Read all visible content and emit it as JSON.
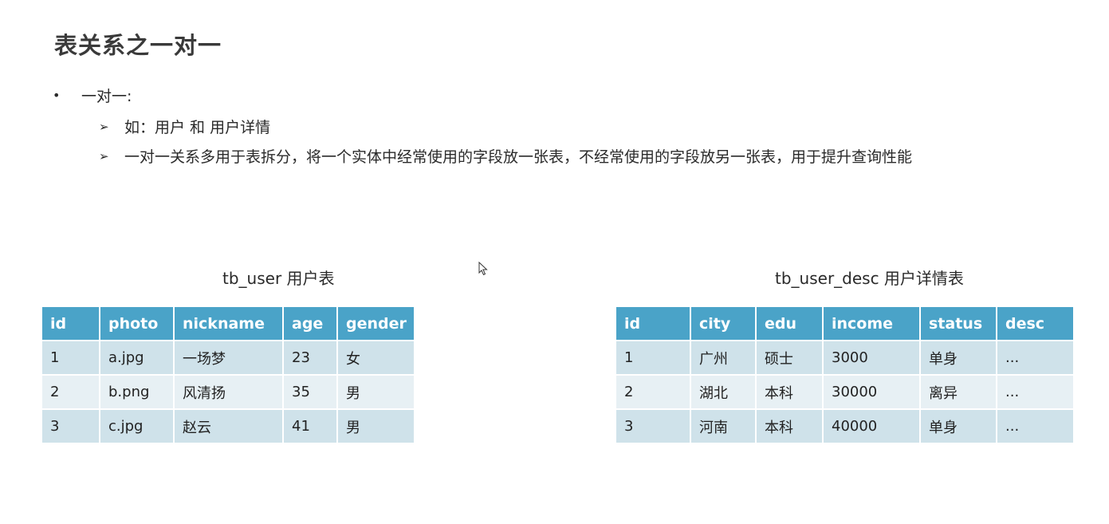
{
  "slide": {
    "title": "表关系之一对一",
    "bullet": "一对一:",
    "sub_items": [
      "如：用户 和 用户详情",
      "一对一关系多用于表拆分，将一个实体中经常使用的字段放一张表，不经常使用的字段放另一张表，用于提升查询性能"
    ]
  },
  "tables": {
    "left": {
      "caption": "tb_user 用户表",
      "headers": [
        "id",
        "photo",
        "nickname",
        "age",
        "gender"
      ],
      "rows": [
        [
          "1",
          "a.jpg",
          "一场梦",
          "23",
          "女"
        ],
        [
          "2",
          "b.png",
          "风清扬",
          "35",
          "男"
        ],
        [
          "3",
          "c.jpg",
          "赵云",
          "41",
          "男"
        ]
      ]
    },
    "right": {
      "caption": "tb_user_desc 用户详情表",
      "headers": [
        "id",
        "city",
        "edu",
        "income",
        "status",
        "desc"
      ],
      "rows": [
        [
          "1",
          "广州",
          "硕士",
          "3000",
          "单身",
          "..."
        ],
        [
          "2",
          "湖北",
          "本科",
          "30000",
          "离异",
          "..."
        ],
        [
          "3",
          "河南",
          "本科",
          "40000",
          "单身",
          "..."
        ]
      ]
    }
  },
  "colors": {
    "header_bg": "#4aa3c8",
    "row_odd_bg": "#cfe2ea",
    "row_even_bg": "#e7f0f4"
  },
  "icons": {
    "bullet": "bullet-dot-icon",
    "sub_bullet": "arrow-bullet-icon",
    "cursor": "mouse-pointer-icon"
  }
}
